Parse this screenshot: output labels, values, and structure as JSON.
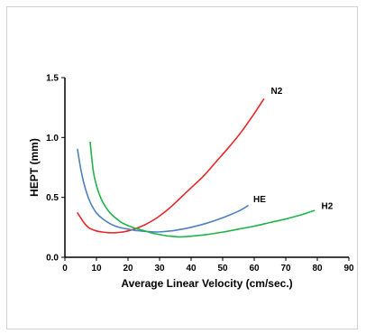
{
  "chart_data": {
    "type": "line",
    "title": "",
    "xlabel": "Average Linear Velocity (cm/sec.)",
    "ylabel": "HEPT (mm)",
    "xlim": [
      0,
      90
    ],
    "ylim": [
      0,
      1.5
    ],
    "x_ticks": [
      "0",
      "10",
      "20",
      "30",
      "40",
      "50",
      "60",
      "70",
      "80",
      "90"
    ],
    "y_ticks": [
      "0.0",
      "0.5",
      "1.0",
      "1.5"
    ],
    "grid": false,
    "legend": "none (series labeled directly at line ends)",
    "series": [
      {
        "name": "N2",
        "color": "#e8262a",
        "x": [
          4,
          5,
          6,
          7,
          8,
          10,
          12,
          14,
          16,
          18,
          20,
          22,
          24,
          26,
          28,
          30,
          32,
          34,
          36,
          38,
          40,
          44,
          48,
          52,
          56,
          60,
          63
        ],
        "y": [
          0.37,
          0.33,
          0.29,
          0.26,
          0.24,
          0.22,
          0.21,
          0.205,
          0.205,
          0.21,
          0.22,
          0.235,
          0.255,
          0.28,
          0.31,
          0.345,
          0.385,
          0.43,
          0.48,
          0.53,
          0.58,
          0.68,
          0.8,
          0.92,
          1.05,
          1.2,
          1.32
        ]
      },
      {
        "name": "HE",
        "color": "#4f81bd",
        "x": [
          4,
          5,
          6,
          7,
          8,
          9,
          10,
          12,
          14,
          16,
          18,
          20,
          22,
          24,
          26,
          28,
          30,
          35,
          40,
          45,
          50,
          55,
          58
        ],
        "y": [
          0.9,
          0.74,
          0.62,
          0.53,
          0.46,
          0.41,
          0.37,
          0.32,
          0.285,
          0.26,
          0.245,
          0.235,
          0.225,
          0.22,
          0.215,
          0.212,
          0.212,
          0.225,
          0.25,
          0.285,
          0.33,
          0.385,
          0.43
        ]
      },
      {
        "name": "H2",
        "color": "#1db54a",
        "x": [
          8,
          9,
          10,
          11,
          12,
          14,
          16,
          18,
          20,
          22,
          24,
          26,
          28,
          30,
          32,
          34,
          36,
          38,
          40,
          45,
          50,
          55,
          60,
          65,
          70,
          75,
          79
        ],
        "y": [
          0.96,
          0.72,
          0.6,
          0.52,
          0.46,
          0.38,
          0.33,
          0.29,
          0.265,
          0.245,
          0.23,
          0.215,
          0.2,
          0.19,
          0.18,
          0.175,
          0.17,
          0.172,
          0.176,
          0.19,
          0.21,
          0.235,
          0.26,
          0.29,
          0.32,
          0.355,
          0.39
        ]
      }
    ]
  }
}
